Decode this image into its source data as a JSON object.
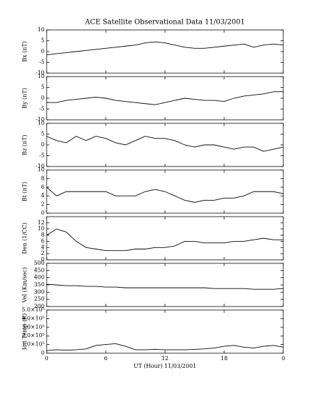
{
  "chart_data": [
    {
      "type": "line",
      "title": "ACE Satellite Observational Data   11/03/2001",
      "ylabel": "Bx (nT)",
      "color": "#000000",
      "x": [
        0,
        1,
        2,
        3,
        4,
        5,
        6,
        7,
        8,
        9,
        10,
        11,
        12,
        13,
        14,
        15,
        16,
        17,
        18,
        19,
        20,
        21,
        22,
        23,
        24
      ],
      "values": [
        -1.5,
        -1,
        -0.5,
        0,
        0.5,
        1,
        1.5,
        2,
        2.5,
        3,
        4,
        4.5,
        4,
        3,
        2,
        1.5,
        1.5,
        2,
        2.5,
        3,
        3.5,
        2,
        3,
        3.5,
        3
      ],
      "ylim": [
        -10,
        10
      ],
      "yticks": [
        -10,
        -5,
        0,
        5,
        10
      ]
    },
    {
      "type": "line",
      "ylabel": "By (nT)",
      "color": "#000000",
      "x": [
        0,
        1,
        2,
        3,
        4,
        5,
        6,
        7,
        8,
        9,
        10,
        11,
        12,
        13,
        14,
        15,
        16,
        17,
        18,
        19,
        20,
        21,
        22,
        23,
        24
      ],
      "values": [
        -2,
        -2,
        -1,
        -0.5,
        0,
        0.5,
        0,
        -1,
        -1.5,
        -2,
        -2.5,
        -3,
        -2,
        -1,
        0,
        -0.5,
        -1,
        -1,
        -1.5,
        0,
        1,
        1.5,
        2,
        3,
        3
      ],
      "ylim": [
        -10,
        10
      ],
      "yticks": [
        -10,
        -5,
        0,
        5,
        10
      ]
    },
    {
      "type": "line",
      "ylabel": "Bz (nT)",
      "color": "#000000",
      "x": [
        0,
        1,
        2,
        3,
        4,
        5,
        6,
        7,
        8,
        9,
        10,
        11,
        12,
        13,
        14,
        15,
        16,
        17,
        18,
        19,
        20,
        21,
        22,
        23,
        24
      ],
      "values": [
        4,
        2,
        1,
        4,
        2,
        4,
        3,
        1,
        0,
        2,
        4,
        3,
        3,
        2,
        0,
        -1,
        0,
        0,
        -1,
        -2,
        -1,
        -1,
        -3,
        -2,
        -1
      ],
      "ylim": [
        -10,
        10
      ],
      "yticks": [
        -10,
        -5,
        0,
        5,
        10
      ]
    },
    {
      "type": "line",
      "ylabel": "Bt (nT)",
      "color": "#000000",
      "x": [
        0,
        1,
        2,
        3,
        4,
        5,
        6,
        7,
        8,
        9,
        10,
        11,
        12,
        13,
        14,
        15,
        16,
        17,
        18,
        19,
        20,
        21,
        22,
        23,
        24
      ],
      "values": [
        6,
        4,
        5,
        5,
        5,
        5,
        5,
        4,
        4,
        4,
        5,
        5.5,
        5,
        4,
        3,
        2.5,
        3,
        3,
        3.5,
        3.5,
        4,
        5,
        5,
        5,
        4.5
      ],
      "ylim": [
        0,
        10
      ],
      "yticks": [
        0,
        2,
        4,
        6,
        8,
        10
      ]
    },
    {
      "type": "line",
      "ylabel": "Den (1/CC)",
      "color": "#000000",
      "x": [
        0,
        1,
        2,
        3,
        4,
        5,
        6,
        7,
        8,
        9,
        10,
        11,
        12,
        13,
        14,
        15,
        16,
        17,
        18,
        19,
        20,
        21,
        22,
        23,
        24
      ],
      "values": [
        8,
        10,
        9,
        6,
        4,
        3.5,
        3,
        3,
        3,
        3.5,
        3.5,
        4,
        4,
        4.5,
        6,
        6,
        5.5,
        5.5,
        5.5,
        6,
        6,
        6.5,
        7,
        6.5,
        6.5
      ],
      "ylim": [
        0,
        14
      ],
      "yticks": [
        0,
        2,
        4,
        6,
        8,
        10,
        12
      ]
    },
    {
      "type": "line",
      "ylabel": "Vel (Km/sec)",
      "color": "#000000",
      "x": [
        0,
        1,
        2,
        3,
        4,
        5,
        6,
        7,
        8,
        9,
        10,
        11,
        12,
        13,
        14,
        15,
        16,
        17,
        18,
        19,
        20,
        21,
        22,
        23,
        24
      ],
      "values": [
        355,
        350,
        345,
        345,
        340,
        340,
        335,
        335,
        330,
        330,
        330,
        330,
        330,
        330,
        330,
        330,
        330,
        325,
        325,
        325,
        325,
        320,
        320,
        320,
        325
      ],
      "ylim": [
        200,
        500
      ],
      "yticks": [
        200,
        250,
        300,
        350,
        400,
        450,
        500
      ]
    },
    {
      "type": "line",
      "ylabel": "Ion Temp (K)",
      "xlabel": "UT (Hour)  11/03/2001",
      "color": "#000000",
      "x": [
        0,
        1,
        2,
        3,
        4,
        5,
        6,
        7,
        8,
        9,
        10,
        11,
        12,
        13,
        14,
        15,
        16,
        17,
        18,
        19,
        20,
        21,
        22,
        23,
        24
      ],
      "values": [
        30000,
        40000,
        35000,
        40000,
        50000,
        90000,
        100000,
        110000,
        80000,
        40000,
        40000,
        45000,
        40000,
        40000,
        40000,
        45000,
        50000,
        60000,
        80000,
        90000,
        70000,
        60000,
        80000,
        90000,
        70000
      ],
      "ylim": [
        0,
        500000
      ],
      "yticks": [
        0,
        {
          "value": 100000,
          "label": "1.0×10⁵"
        },
        {
          "value": 200000,
          "label": "2.0×10⁵"
        },
        {
          "value": 300000,
          "label": "3.0×10⁵"
        },
        {
          "value": 400000,
          "label": "4.0×10⁵"
        },
        {
          "value": 500000,
          "label": "5.0×10⁵"
        }
      ],
      "xlim": [
        0,
        24
      ],
      "xticks": [
        0,
        6,
        12,
        18,
        {
          "value": 24,
          "label": "0"
        }
      ]
    }
  ]
}
